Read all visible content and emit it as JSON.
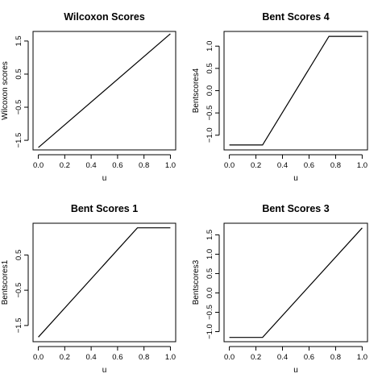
{
  "chart_data": [
    {
      "type": "line",
      "title": "Wilcoxon Scores",
      "xlabel": "u",
      "ylabel": "Wilcoxon scores",
      "xlim": [
        -0.04,
        1.04
      ],
      "ylim": [
        -1.79,
        1.79
      ],
      "xticks": [
        0.0,
        0.2,
        0.4,
        0.6,
        0.8,
        1.0
      ],
      "xtick_labels": [
        "0.0",
        "0.2",
        "0.4",
        "0.6",
        "0.8",
        "1.0"
      ],
      "yticks": [
        -1.5,
        -0.5,
        0.5,
        1.5
      ],
      "ytick_labels": [
        "−1.5",
        "−0.5",
        "0.5",
        "1.5"
      ],
      "series": [
        {
          "x": [
            0.0,
            1.0
          ],
          "y": [
            -1.72,
            1.72
          ]
        }
      ]
    },
    {
      "type": "line",
      "title": "Bent Scores 4",
      "xlabel": "u",
      "ylabel": "Bentscores4",
      "xlim": [
        -0.04,
        1.04
      ],
      "ylim": [
        -1.33,
        1.33
      ],
      "xticks": [
        0.0,
        0.2,
        0.4,
        0.6,
        0.8,
        1.0
      ],
      "xtick_labels": [
        "0.0",
        "0.2",
        "0.4",
        "0.6",
        "0.8",
        "1.0"
      ],
      "yticks": [
        -1.0,
        -0.5,
        0.0,
        0.5,
        1.0
      ],
      "ytick_labels": [
        "−1.0",
        "−0.5",
        "0.0",
        "0.5",
        "1.0"
      ],
      "series": [
        {
          "x": [
            0.0,
            0.25,
            0.75,
            1.0
          ],
          "y": [
            -1.22,
            -1.22,
            1.22,
            1.22
          ]
        }
      ]
    },
    {
      "type": "line",
      "title": "Bent Scores 1",
      "xlabel": "u",
      "ylabel": "Bentscores1",
      "xlim": [
        -0.04,
        1.04
      ],
      "ylim": [
        -1.96,
        1.4
      ],
      "xticks": [
        0.0,
        0.2,
        0.4,
        0.6,
        0.8,
        1.0
      ],
      "xtick_labels": [
        "0.0",
        "0.2",
        "0.4",
        "0.6",
        "0.8",
        "1.0"
      ],
      "yticks": [
        -1.5,
        -0.5,
        0.5
      ],
      "ytick_labels": [
        "−1.5",
        "−0.5",
        "0.5"
      ],
      "series": [
        {
          "x": [
            0.0,
            0.75,
            1.0
          ],
          "y": [
            -1.83,
            1.27,
            1.27
          ]
        }
      ]
    },
    {
      "type": "line",
      "title": "Bent Scores 3",
      "xlabel": "u",
      "ylabel": "Bentscores3",
      "xlim": [
        -0.04,
        1.04
      ],
      "ylim": [
        -1.26,
        1.8
      ],
      "xticks": [
        0.0,
        0.2,
        0.4,
        0.6,
        0.8,
        1.0
      ],
      "xtick_labels": [
        "0.0",
        "0.2",
        "0.4",
        "0.6",
        "0.8",
        "1.0"
      ],
      "yticks": [
        -1.0,
        -0.5,
        0.0,
        0.5,
        1.0,
        1.5
      ],
      "ytick_labels": [
        "−1.0",
        "−0.5",
        "0.0",
        "0.5",
        "1.0",
        "1.5"
      ],
      "series": [
        {
          "x": [
            0.0,
            0.25,
            1.0
          ],
          "y": [
            -1.15,
            -1.15,
            1.68
          ]
        }
      ]
    }
  ]
}
